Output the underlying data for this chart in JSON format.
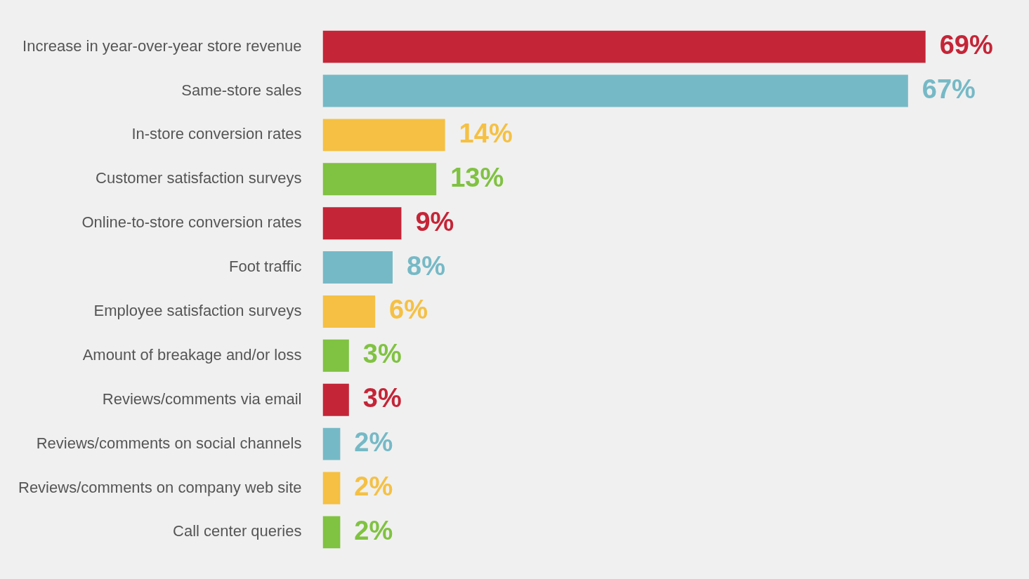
{
  "chart_data": {
    "type": "bar",
    "orientation": "horizontal",
    "categories": [
      "Increase in year-over-year store revenue",
      "Same-store sales",
      "In-store conversion rates",
      "Customer satisfaction surveys",
      "Online-to-store conversion rates",
      "Foot traffic",
      "Employee satisfaction surveys",
      "Amount of breakage and/or loss",
      "Reviews/comments via email",
      "Reviews/comments on social channels",
      "Reviews/comments on company web site",
      "Call center queries"
    ],
    "values": [
      69,
      67,
      14,
      13,
      9,
      8,
      6,
      3,
      3,
      2,
      2,
      2
    ],
    "value_labels": [
      "69%",
      "67%",
      "14%",
      "13%",
      "9%",
      "8%",
      "6%",
      "3%",
      "3%",
      "2%",
      "2%",
      "2%"
    ],
    "colors": [
      "#c42537",
      "#76b9c6",
      "#f5c043",
      "#80c241",
      "#c42537",
      "#76b9c6",
      "#f5c043",
      "#80c241",
      "#c42537",
      "#76b9c6",
      "#f5c043",
      "#80c241"
    ],
    "legend": false
  }
}
